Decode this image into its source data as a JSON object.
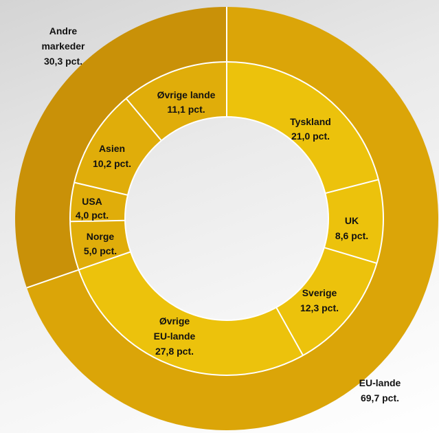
{
  "chart_data": {
    "type": "pie",
    "style": "nested-donut",
    "outer": {
      "slices": [
        {
          "name": "EU-lande",
          "value": 69.7,
          "label": "69,7 pct.",
          "color": "#dba508"
        },
        {
          "name": "Andre markeder",
          "value": 30.3,
          "label": "30,3 pct.",
          "color": "#c99108"
        }
      ]
    },
    "inner": {
      "slices": [
        {
          "name": "Tyskland",
          "value": 21.0,
          "label": "21,0 pct.",
          "color": "#ecc20c"
        },
        {
          "name": "UK",
          "value": 8.6,
          "label": "8,6 pct.",
          "color": "#ecc20c"
        },
        {
          "name": "Sverige",
          "value": 12.3,
          "label": "12,3 pct.",
          "color": "#ecc20c"
        },
        {
          "name": "Øvrige EU-lande",
          "value": 27.8,
          "label": "27,8 pct.",
          "color": "#ecc20c"
        },
        {
          "name": "Norge",
          "value": 5.0,
          "label": "5,0 pct.",
          "color": "#e0ad0a"
        },
        {
          "name": "USA",
          "value": 4.0,
          "label": "4,0 pct.",
          "color": "#e0ad0a"
        },
        {
          "name": "Asien",
          "value": 10.2,
          "label": "10,2 pct.",
          "color": "#e0ad0a"
        },
        {
          "name": "Øvrige lande",
          "value": 11.1,
          "label": "11,1 pct.",
          "color": "#e0ad0a"
        }
      ]
    }
  }
}
